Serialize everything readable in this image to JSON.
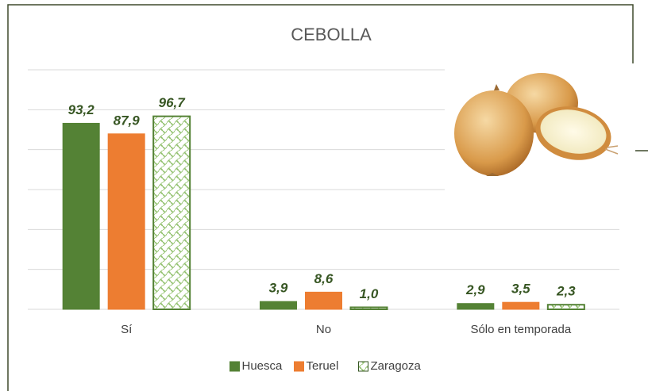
{
  "chart_data": {
    "type": "bar",
    "title": "CEBOLLA",
    "categories": [
      "Sí",
      "No",
      "Sólo en temporada"
    ],
    "series": [
      {
        "name": "Huesca",
        "color": "#548235",
        "values": [
          93.2,
          3.9,
          2.9
        ],
        "value_labels": [
          "93,2",
          "3,9",
          "2,9"
        ]
      },
      {
        "name": "Teruel",
        "color": "#ed7d31",
        "values": [
          87.9,
          8.6,
          3.5
        ],
        "value_labels": [
          "87,9",
          "8,6",
          "3,5"
        ]
      },
      {
        "name": "Zaragoza",
        "color": "#548235",
        "hatch": true,
        "values": [
          96.7,
          1.0,
          2.3
        ],
        "value_labels": [
          "96,7",
          "1,0",
          "2,3"
        ]
      }
    ],
    "ylim": [
      0,
      120
    ],
    "yticks": [
      0,
      20,
      40,
      60,
      80,
      100,
      120
    ],
    "grid": true,
    "legend": "bottom"
  }
}
